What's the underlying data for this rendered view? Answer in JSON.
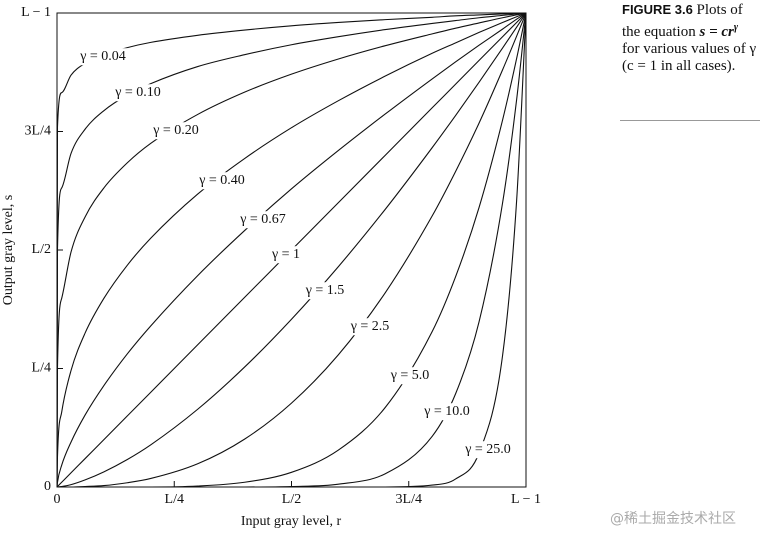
{
  "chart_data": {
    "type": "line",
    "x_label": "Input gray level, r",
    "y_label": "Output gray level, s",
    "xlim": [
      0,
      1
    ],
    "ylim": [
      0,
      1
    ],
    "xticks": [
      0,
      {
        "value": 0.25,
        "label": "L/4"
      },
      {
        "value": 0.5,
        "label": "L/2"
      },
      {
        "value": 0.75,
        "label": "3L/4"
      },
      {
        "value": 1,
        "label": "L − 1"
      }
    ],
    "yticks": [
      0,
      {
        "value": 0.25,
        "label": "L/4"
      },
      {
        "value": 0.5,
        "label": "L/2"
      },
      {
        "value": 0.75,
        "label": "3L/4"
      },
      {
        "value": 1,
        "label": "L − 1"
      }
    ],
    "grid": false,
    "x": [
      0,
      0.001,
      0.01,
      0.03,
      0.06,
      0.1,
      0.15,
      0.2,
      0.3,
      0.4,
      0.5,
      0.6,
      0.7,
      0.8,
      0.85,
      0.9,
      0.95,
      0.98,
      1
    ],
    "series": [
      {
        "name": "γ = 0.04",
        "color": "#111111",
        "values": [
          0,
          0.759,
          0.832,
          0.869,
          0.894,
          0.912,
          0.927,
          0.938,
          0.953,
          0.964,
          0.973,
          0.98,
          0.986,
          0.991,
          0.994,
          0.996,
          0.998,
          0.999,
          1
        ]
      },
      {
        "name": "γ = 0.10",
        "color": "#111111",
        "values": [
          0,
          0.501,
          0.631,
          0.704,
          0.755,
          0.794,
          0.827,
          0.851,
          0.887,
          0.912,
          0.933,
          0.95,
          0.965,
          0.978,
          0.984,
          0.99,
          0.995,
          0.998,
          1
        ]
      },
      {
        "name": "γ = 0.20",
        "color": "#111111",
        "values": [
          0,
          0.251,
          0.398,
          0.496,
          0.57,
          0.631,
          0.684,
          0.725,
          0.786,
          0.833,
          0.871,
          0.903,
          0.931,
          0.956,
          0.968,
          0.979,
          0.99,
          0.996,
          1
        ]
      },
      {
        "name": "γ = 0.40",
        "color": "#111111",
        "values": [
          0,
          0.063,
          0.158,
          0.246,
          0.325,
          0.398,
          0.468,
          0.525,
          0.618,
          0.693,
          0.758,
          0.815,
          0.867,
          0.915,
          0.937,
          0.959,
          0.98,
          0.992,
          1
        ]
      },
      {
        "name": "γ = 0.67",
        "color": "#111111",
        "values": [
          0,
          0.01,
          0.046,
          0.095,
          0.152,
          0.214,
          0.281,
          0.34,
          0.446,
          0.541,
          0.629,
          0.71,
          0.787,
          0.861,
          0.897,
          0.932,
          0.966,
          0.987,
          1
        ]
      },
      {
        "name": "γ = 1",
        "color": "#111111",
        "values": [
          0,
          0.001,
          0.01,
          0.03,
          0.06,
          0.1,
          0.15,
          0.2,
          0.3,
          0.4,
          0.5,
          0.6,
          0.7,
          0.8,
          0.85,
          0.9,
          0.95,
          0.98,
          1
        ]
      },
      {
        "name": "γ = 1.5",
        "color": "#111111",
        "values": [
          0,
          0,
          0.001,
          0.005,
          0.015,
          0.032,
          0.058,
          0.089,
          0.164,
          0.253,
          0.354,
          0.465,
          0.586,
          0.716,
          0.784,
          0.854,
          0.926,
          0.97,
          1
        ]
      },
      {
        "name": "γ = 2.5",
        "color": "#111111",
        "values": [
          0,
          0,
          0,
          0,
          0.001,
          0.003,
          0.009,
          0.018,
          0.049,
          0.101,
          0.177,
          0.279,
          0.41,
          0.572,
          0.666,
          0.768,
          0.88,
          0.951,
          1
        ]
      },
      {
        "name": "γ = 5.0",
        "color": "#111111",
        "values": [
          0,
          0,
          0,
          0,
          0,
          0,
          0,
          0,
          0.002,
          0.01,
          0.031,
          0.078,
          0.168,
          0.328,
          0.444,
          0.59,
          0.774,
          0.904,
          1
        ]
      },
      {
        "name": "γ = 10.0",
        "color": "#111111",
        "values": [
          0,
          0,
          0,
          0,
          0,
          0,
          0,
          0,
          0,
          0,
          0.001,
          0.006,
          0.028,
          0.107,
          0.197,
          0.349,
          0.599,
          0.817,
          1
        ]
      },
      {
        "name": "γ = 25.0",
        "color": "#111111",
        "values": [
          0,
          0,
          0,
          0,
          0,
          0,
          0,
          0,
          0,
          0,
          0,
          0,
          0,
          0.004,
          0.017,
          0.072,
          0.277,
          0.604,
          1
        ]
      }
    ]
  },
  "figure": {
    "label": "FIGURE 3.6",
    "before": "Plots of the equation",
    "equation": "s = cr",
    "exponent": "γ",
    "after": "for various values of γ (c = 1 in all cases)."
  },
  "watermark": "@稀土掘金技术社区"
}
